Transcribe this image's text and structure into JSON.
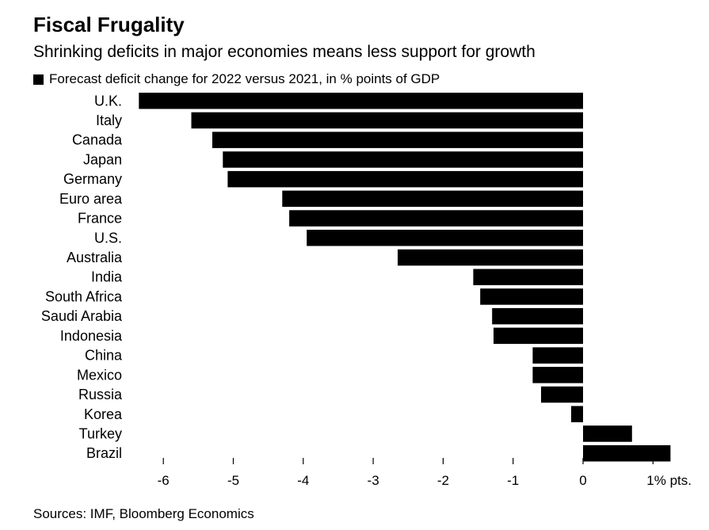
{
  "header": {
    "title": "Fiscal Frugality",
    "subtitle": "Shrinking deficits in major economies means less support for growth"
  },
  "legend": {
    "label": "Forecast deficit change for 2022 versus 2021, in % points of GDP",
    "color": "#000000"
  },
  "footer": {
    "source": "Sources: IMF, Bloomberg Economics"
  },
  "chart_data": {
    "type": "bar",
    "orientation": "horizontal",
    "categories": [
      "U.K.",
      "Italy",
      "Canada",
      "Japan",
      "Germany",
      "Euro area",
      "France",
      "U.S.",
      "Australia",
      "India",
      "South Africa",
      "Saudi Arabia",
      "Indonesia",
      "China",
      "Mexico",
      "Russia",
      "Korea",
      "Turkey",
      "Brazil"
    ],
    "series": [
      {
        "name": "Forecast deficit change for 2022 versus 2021, in % points of GDP",
        "values": [
          -6.35,
          -5.6,
          -5.3,
          -5.15,
          -5.08,
          -4.3,
          -4.2,
          -3.95,
          -2.65,
          -1.57,
          -1.47,
          -1.3,
          -1.28,
          -0.72,
          -0.72,
          -0.6,
          -0.17,
          0.7,
          1.25
        ],
        "color": "#000000"
      }
    ],
    "xlim": [
      -6.4,
      1.3
    ],
    "ticks": [
      -6,
      -5,
      -4,
      -3,
      -2,
      -1,
      0,
      1
    ],
    "tick_labels": [
      "-6",
      "-5",
      "-4",
      "-3",
      "-2",
      "-1",
      "0",
      "1% pts."
    ],
    "xlabel": "",
    "ylabel": "",
    "grid": false,
    "legend_position": "top-left"
  }
}
